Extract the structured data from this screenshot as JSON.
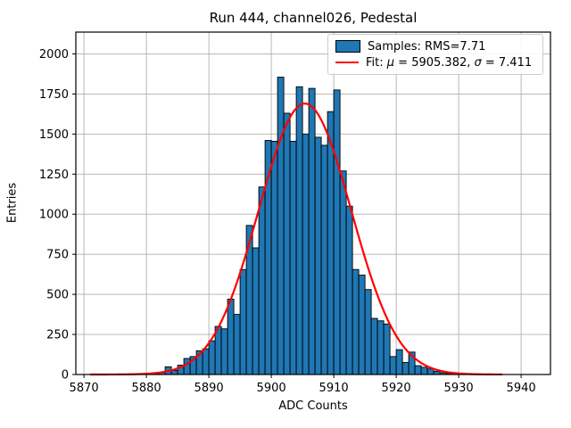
{
  "chart_data": {
    "type": "bar",
    "subtype": "histogram",
    "title": "Run 444, channel026, Pedestal",
    "xlabel": "ADC Counts",
    "ylabel": "Entries",
    "xlim": [
      5868.7,
      5944.7
    ],
    "ylim": [
      0,
      2136
    ],
    "xticks": [
      5870,
      5880,
      5890,
      5900,
      5910,
      5920,
      5930,
      5940
    ],
    "yticks": [
      0,
      250,
      500,
      750,
      1000,
      1250,
      1500,
      1750,
      2000
    ],
    "grid": true,
    "legend_position": "upper right",
    "histogram": {
      "bin_start": 5880,
      "bin_width": 1,
      "counts": [
        2,
        6,
        14,
        48,
        25,
        58,
        100,
        112,
        148,
        160,
        210,
        300,
        285,
        470,
        375,
        655,
        930,
        790,
        1170,
        1460,
        1455,
        1855,
        1630,
        1455,
        1795,
        1500,
        1785,
        1480,
        1430,
        1640,
        1775,
        1270,
        1050,
        655,
        620,
        530,
        350,
        335,
        315,
        112,
        155,
        75,
        140,
        55,
        45,
        35,
        20,
        11,
        7
      ]
    },
    "fit": {
      "mu": 5905.382,
      "sigma": 7.411,
      "amplitude": 1690,
      "x_start": 5871,
      "x_end": 5937
    },
    "colors": {
      "bar": "#1f77b4",
      "bar_edge": "#000000",
      "fit": "#ff0000",
      "grid": "#b0b0b0",
      "frame": "#000000"
    }
  },
  "legend": {
    "samples_label": "Samples: RMS=7.71",
    "fit_prefix": "Fit: ",
    "fit_mu_symbol": "μ",
    "fit_mid": " = 5905.382, ",
    "fit_sigma_symbol": "σ",
    "fit_suffix": " = 7.411"
  }
}
